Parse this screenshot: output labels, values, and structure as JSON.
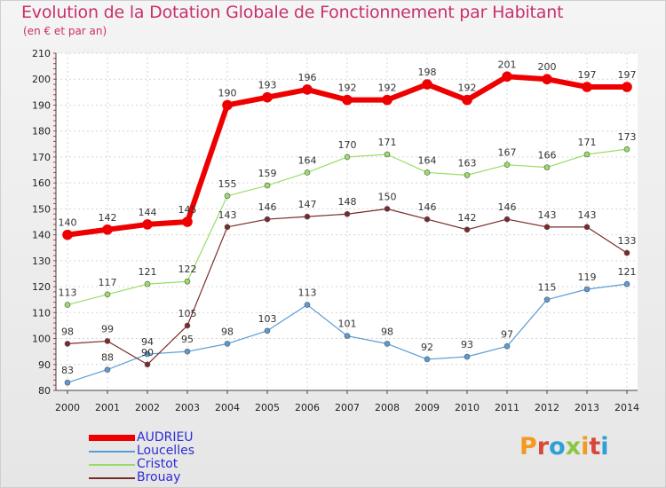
{
  "title": "Evolution de la Dotation Globale de Fonctionnement par Habitant",
  "subtitle": "(en € et par an)",
  "brand": {
    "letters": [
      "P",
      "r",
      "o",
      "x",
      "i",
      "t",
      "i"
    ],
    "colors": [
      "#f29a1d",
      "#d9473a",
      "#2f9fd8",
      "#8cc63f",
      "#f29a1d",
      "#d9473a",
      "#2f9fd8"
    ]
  },
  "chart_data": {
    "type": "line",
    "title": "Evolution de la Dotation Globale de Fonctionnement par Habitant",
    "ylabel": "(en € et par an)",
    "xlabel": "",
    "ylim": [
      80,
      210
    ],
    "yticks": [
      80,
      90,
      100,
      110,
      120,
      130,
      140,
      150,
      160,
      170,
      180,
      190,
      200,
      210
    ],
    "grid": true,
    "legend": "bottom-left",
    "categories": [
      "2000",
      "2001",
      "2002",
      "2003",
      "2004",
      "2005",
      "2006",
      "2007",
      "2008",
      "2009",
      "2010",
      "2011",
      "2012",
      "2013",
      "2014"
    ],
    "series": [
      {
        "name": "AUDRIEU",
        "color": "#ee0000",
        "values": [
          140,
          142,
          144,
          145,
          190,
          193,
          196,
          192,
          192,
          198,
          192,
          201,
          200,
          197,
          197
        ]
      },
      {
        "name": "Loucelles",
        "color": "#5b9bd5",
        "values": [
          83,
          88,
          94,
          95,
          98,
          103,
          113,
          101,
          98,
          92,
          93,
          97,
          115,
          119,
          121
        ]
      },
      {
        "name": "Cristot",
        "color": "#99dd66",
        "values": [
          113,
          117,
          121,
          122,
          155,
          159,
          164,
          170,
          171,
          164,
          163,
          167,
          166,
          171,
          173
        ]
      },
      {
        "name": "Brouay",
        "color": "#7a2a2a",
        "values": [
          98,
          99,
          90,
          105,
          143,
          146,
          147,
          148,
          150,
          146,
          142,
          146,
          143,
          143,
          133
        ]
      }
    ]
  }
}
